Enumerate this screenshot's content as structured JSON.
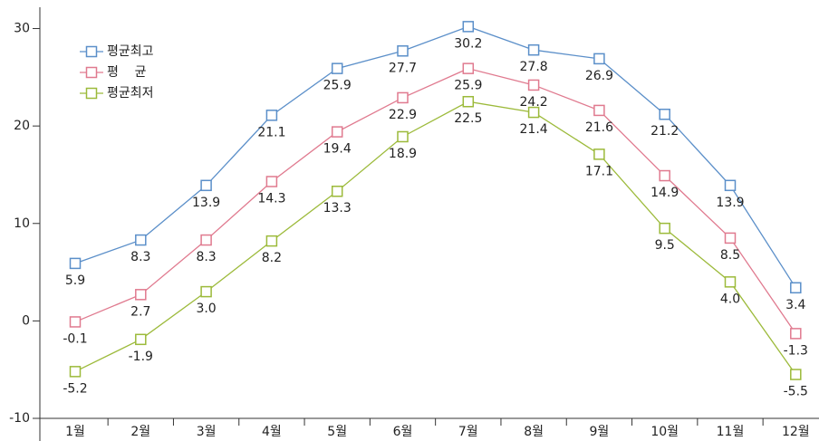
{
  "chart_data": {
    "type": "line",
    "categories": [
      "1월",
      "2월",
      "3월",
      "4월",
      "5월",
      "6월",
      "7월",
      "8월",
      "9월",
      "10월",
      "11월",
      "12월"
    ],
    "series": [
      {
        "name": "평균최고",
        "color": "#5b8fc9",
        "values": [
          5.9,
          8.3,
          13.9,
          21.1,
          25.9,
          27.7,
          30.2,
          27.8,
          26.9,
          21.2,
          13.9,
          3.4
        ],
        "value_labels": [
          "5.9",
          "8.3",
          "13.9",
          "21.1",
          "25.9",
          "27.7",
          "30.2",
          "27.8",
          "26.9",
          "21.2",
          "13.9",
          "3.4"
        ]
      },
      {
        "name": "평    균",
        "color": "#e07a8f",
        "values": [
          -0.1,
          2.7,
          8.3,
          14.3,
          19.4,
          22.9,
          25.9,
          24.2,
          21.6,
          14.9,
          8.5,
          -1.3
        ],
        "value_labels": [
          "-0.1",
          "2.7",
          "8.3",
          "14.3",
          "19.4",
          "22.9",
          "25.9",
          "24.2",
          "21.6",
          "14.9",
          "8.5",
          "-1.3"
        ]
      },
      {
        "name": "평균최저",
        "color": "#9cba3a",
        "values": [
          -5.2,
          -1.9,
          3.0,
          8.2,
          13.3,
          18.9,
          22.5,
          21.4,
          17.1,
          9.5,
          4.0,
          -5.5
        ],
        "value_labels": [
          "-5.2",
          "-1.9",
          "3.0",
          "8.2",
          "13.3",
          "18.9",
          "22.5",
          "21.4",
          "17.1",
          "9.5",
          "4.0",
          "-5.5"
        ]
      }
    ],
    "ylim": [
      -10,
      32
    ],
    "yticks": [
      -10,
      0,
      10,
      20,
      30
    ],
    "legend": "top-left"
  }
}
